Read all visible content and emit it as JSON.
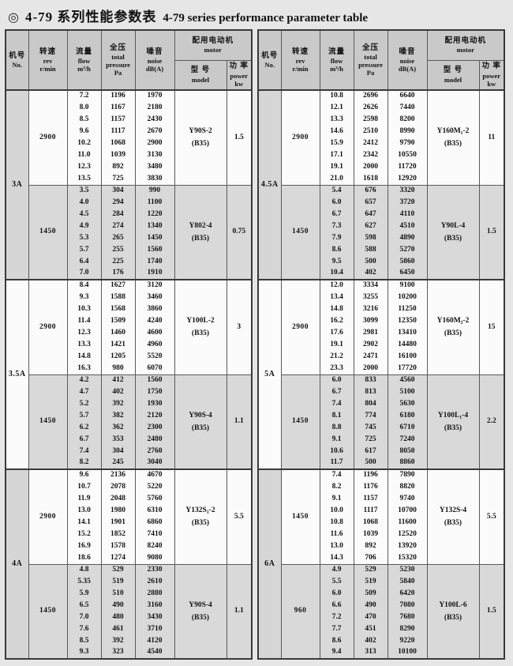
{
  "title": {
    "bullet": "◎",
    "zh": "4-79 系列性能参数表",
    "en": "4-79 series performance parameter table"
  },
  "columns": {
    "no": {
      "zh": "机号",
      "en": "No."
    },
    "rev": {
      "zh": "转速",
      "en": "rev",
      "unit": "r/min"
    },
    "flow": {
      "zh": "流量",
      "en": "flow",
      "unit": "m³/h"
    },
    "pressure": {
      "zh": "全压",
      "en": "total",
      "en2": "pressure",
      "unit": "Pa"
    },
    "noise": {
      "zh": "噪音",
      "en": "noise",
      "unit": "dB(A)"
    },
    "motor": {
      "zh": "配用电动机",
      "en": "motor"
    },
    "model": {
      "zh": "型 号",
      "en": "model"
    },
    "power": {
      "zh": "功 率",
      "en": "power",
      "unit": "kw"
    }
  },
  "colors": {
    "page_bg": "#e6e6e6",
    "header_bg": "#c9c9c9",
    "row_gray": "#d9d9d9",
    "row_white": "#fbfbfb",
    "border_dark": "#3a3a3a",
    "border_light": "#5a5a5a",
    "text": "#111111"
  },
  "tables": [
    {
      "blocks": [
        {
          "no": "3A",
          "shade": "gray",
          "groups": [
            {
              "rev": "2900",
              "shade": "white",
              "model": "Y90S-2",
              "frame": "(B35)",
              "power": "1.5",
              "rows": [
                [
                  "7.2",
                  "1196",
                  "1970"
                ],
                [
                  "8.0",
                  "1167",
                  "2180"
                ],
                [
                  "8.5",
                  "1157",
                  "2430"
                ],
                [
                  "9.6",
                  "1117",
                  "2670"
                ],
                [
                  "10.2",
                  "1068",
                  "2900"
                ],
                [
                  "11.0",
                  "1039",
                  "3130"
                ],
                [
                  "12.3",
                  "892",
                  "3480"
                ],
                [
                  "13.5",
                  "725",
                  "3830"
                ]
              ]
            },
            {
              "rev": "1450",
              "shade": "gray",
              "model": "Y802-4",
              "frame": "(B35)",
              "power": "0.75",
              "rows": [
                [
                  "3.5",
                  "304",
                  "990"
                ],
                [
                  "4.0",
                  "294",
                  "1100"
                ],
                [
                  "4.5",
                  "284",
                  "1220"
                ],
                [
                  "4.9",
                  "274",
                  "1340"
                ],
                [
                  "5.3",
                  "265",
                  "1450"
                ],
                [
                  "5.7",
                  "255",
                  "1560"
                ],
                [
                  "6.4",
                  "225",
                  "1740"
                ],
                [
                  "7.0",
                  "176",
                  "1910"
                ]
              ]
            }
          ]
        },
        {
          "no": "3.5A",
          "shade": "white",
          "groups": [
            {
              "rev": "2900",
              "shade": "white",
              "model": "Y100L-2",
              "frame": "(B35)",
              "power": "3",
              "rows": [
                [
                  "8.4",
                  "1627",
                  "3120"
                ],
                [
                  "9.3",
                  "1588",
                  "3460"
                ],
                [
                  "10.3",
                  "1568",
                  "3860"
                ],
                [
                  "11.4",
                  "1509",
                  "4240"
                ],
                [
                  "12.3",
                  "1460",
                  "4600"
                ],
                [
                  "13.3",
                  "1421",
                  "4960"
                ],
                [
                  "14.8",
                  "1205",
                  "5520"
                ],
                [
                  "16.3",
                  "980",
                  "6070"
                ]
              ]
            },
            {
              "rev": "1450",
              "shade": "gray",
              "model": "Y90S-4",
              "frame": "(B35)",
              "power": "1.1",
              "rows": [
                [
                  "4.2",
                  "412",
                  "1560"
                ],
                [
                  "4.7",
                  "402",
                  "1750"
                ],
                [
                  "5.2",
                  "392",
                  "1930"
                ],
                [
                  "5.7",
                  "382",
                  "2120"
                ],
                [
                  "6.2",
                  "362",
                  "2300"
                ],
                [
                  "6.7",
                  "353",
                  "2480"
                ],
                [
                  "7.4",
                  "304",
                  "2760"
                ],
                [
                  "8.2",
                  "245",
                  "3040"
                ]
              ]
            }
          ]
        },
        {
          "no": "4A",
          "shade": "gray",
          "groups": [
            {
              "rev": "2900",
              "shade": "white",
              "model": "Y132S₁-2",
              "frame": "(B35)",
              "power": "5.5",
              "rows": [
                [
                  "9.6",
                  "2136",
                  "4670"
                ],
                [
                  "10.7",
                  "2078",
                  "5220"
                ],
                [
                  "11.9",
                  "2048",
                  "5760"
                ],
                [
                  "13.0",
                  "1980",
                  "6310"
                ],
                [
                  "14.1",
                  "1901",
                  "6860"
                ],
                [
                  "15.2",
                  "1852",
                  "7410"
                ],
                [
                  "16.9",
                  "1578",
                  "8240"
                ],
                [
                  "18.6",
                  "1274",
                  "9080"
                ]
              ]
            },
            {
              "rev": "1450",
              "shade": "gray",
              "model": "Y90S-4",
              "frame": "(B35)",
              "power": "1.1",
              "rows": [
                [
                  "4.8",
                  "529",
                  "2330"
                ],
                [
                  "5.35",
                  "519",
                  "2610"
                ],
                [
                  "5.9",
                  "510",
                  "2880"
                ],
                [
                  "6.5",
                  "490",
                  "3160"
                ],
                [
                  "7.0",
                  "480",
                  "3430"
                ],
                [
                  "7.6",
                  "461",
                  "3710"
                ],
                [
                  "8.5",
                  "392",
                  "4120"
                ],
                [
                  "9.3",
                  "323",
                  "4540"
                ]
              ]
            }
          ]
        }
      ]
    },
    {
      "blocks": [
        {
          "no": "4.5A",
          "shade": "gray",
          "groups": [
            {
              "rev": "2900",
              "shade": "white",
              "model": "Y160M₁-2",
              "frame": "(B35)",
              "power": "11",
              "rows": [
                [
                  "10.8",
                  "2696",
                  "6640"
                ],
                [
                  "12.1",
                  "2626",
                  "7440"
                ],
                [
                  "13.3",
                  "2598",
                  "8200"
                ],
                [
                  "14.6",
                  "2510",
                  "8990"
                ],
                [
                  "15.9",
                  "2412",
                  "9790"
                ],
                [
                  "17.1",
                  "2342",
                  "10550"
                ],
                [
                  "19.1",
                  "2000",
                  "11720"
                ],
                [
                  "21.0",
                  "1618",
                  "12920"
                ]
              ]
            },
            {
              "rev": "1450",
              "shade": "gray",
              "model": "Y90L-4",
              "frame": "(B35)",
              "power": "1.5",
              "rows": [
                [
                  "5.4",
                  "676",
                  "3320"
                ],
                [
                  "6.0",
                  "657",
                  "3720"
                ],
                [
                  "6.7",
                  "647",
                  "4110"
                ],
                [
                  "7.3",
                  "627",
                  "4510"
                ],
                [
                  "7.9",
                  "598",
                  "4890"
                ],
                [
                  "8.6",
                  "588",
                  "5270"
                ],
                [
                  "9.5",
                  "500",
                  "5860"
                ],
                [
                  "10.4",
                  "402",
                  "6450"
                ]
              ]
            }
          ]
        },
        {
          "no": "5A",
          "shade": "white",
          "groups": [
            {
              "rev": "2900",
              "shade": "white",
              "model": "Y160M₂-2",
              "frame": "(B35)",
              "power": "15",
              "rows": [
                [
                  "12.0",
                  "3334",
                  "9100"
                ],
                [
                  "13.4",
                  "3255",
                  "10200"
                ],
                [
                  "14.8",
                  "3216",
                  "11250"
                ],
                [
                  "16.2",
                  "3099",
                  "12350"
                ],
                [
                  "17.6",
                  "2981",
                  "13410"
                ],
                [
                  "19.1",
                  "2902",
                  "14480"
                ],
                [
                  "21.2",
                  "2471",
                  "16100"
                ],
                [
                  "23.3",
                  "2000",
                  "17720"
                ]
              ]
            },
            {
              "rev": "1450",
              "shade": "gray",
              "model": "Y100L₁-4",
              "frame": "(B35)",
              "power": "2.2",
              "rows": [
                [
                  "6.0",
                  "833",
                  "4560"
                ],
                [
                  "6.7",
                  "813",
                  "5100"
                ],
                [
                  "7.4",
                  "804",
                  "5630"
                ],
                [
                  "8.1",
                  "774",
                  "6180"
                ],
                [
                  "8.8",
                  "745",
                  "6710"
                ],
                [
                  "9.1",
                  "725",
                  "7240"
                ],
                [
                  "10.6",
                  "617",
                  "8050"
                ],
                [
                  "11.7",
                  "500",
                  "8860"
                ]
              ]
            }
          ]
        },
        {
          "no": "6A",
          "shade": "gray",
          "groups": [
            {
              "rev": "1450",
              "shade": "white",
              "model": "Y132S-4",
              "frame": "(B35)",
              "power": "5.5",
              "rows": [
                [
                  "7.4",
                  "1196",
                  "7890"
                ],
                [
                  "8.2",
                  "1176",
                  "8820"
                ],
                [
                  "9.1",
                  "1157",
                  "9740"
                ],
                [
                  "10.0",
                  "1117",
                  "10700"
                ],
                [
                  "10.8",
                  "1068",
                  "11600"
                ],
                [
                  "11.6",
                  "1039",
                  "12520"
                ],
                [
                  "13.0",
                  "892",
                  "13920"
                ],
                [
                  "14.3",
                  "706",
                  "15320"
                ]
              ]
            },
            {
              "rev": "960",
              "shade": "gray",
              "model": "Y100L-6",
              "frame": "(B35)",
              "power": "1.5",
              "rows": [
                [
                  "4.9",
                  "529",
                  "5230"
                ],
                [
                  "5.5",
                  "519",
                  "5840"
                ],
                [
                  "6.0",
                  "509",
                  "6420"
                ],
                [
                  "6.6",
                  "490",
                  "7080"
                ],
                [
                  "7.2",
                  "470",
                  "7680"
                ],
                [
                  "7.7",
                  "451",
                  "8290"
                ],
                [
                  "8.6",
                  "402",
                  "9220"
                ],
                [
                  "9.4",
                  "313",
                  "10100"
                ]
              ]
            }
          ]
        }
      ]
    }
  ]
}
